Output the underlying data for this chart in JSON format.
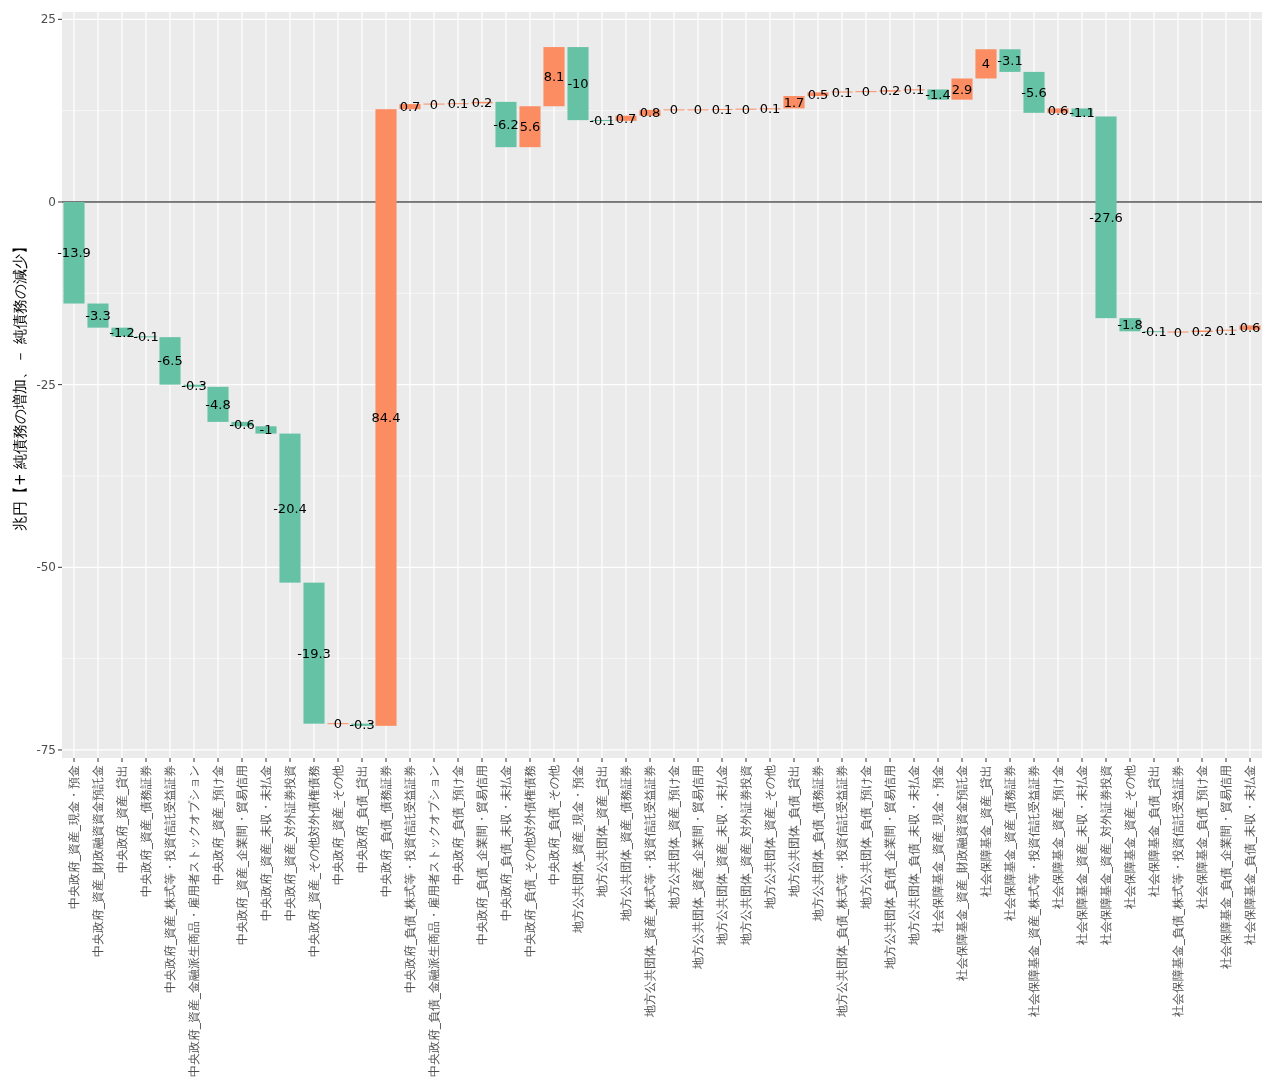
{
  "chart_data": {
    "type": "bar",
    "ylabel": "兆円【+ 純債務の増加、－ 純債務の減少】",
    "categories": [
      "中央政府_資産_現金・預金",
      "中央政府_資産_財政融資資金預託金",
      "中央政府_資産_貸出",
      "中央政府_資産_債務証券",
      "中央政府_資産_株式等・投資信託受益証券",
      "中央政府_資産_金融派生商品・雇用者ストックオプション",
      "中央政府_資産_預け金",
      "中央政府_資産_企業間・貿易信用",
      "中央政府_資産_未収・未払金",
      "中央政府_資産_対外証券投資",
      "中央政府_資産_その他対外債権債務",
      "中央政府_資産_その他",
      "中央政府_負債_貸出",
      "中央政府_負債_債務証券",
      "中央政府_負債_株式等・投資信託受益証券",
      "中央政府_負債_金融派生商品・雇用者ストックオプション",
      "中央政府_負債_預け金",
      "中央政府_負債_企業間・貿易信用",
      "中央政府_負債_未収・未払金",
      "中央政府_負債_その他対外債権債務",
      "中央政府_負債_その他",
      "地方公共団体_資産_現金・預金",
      "地方公共団体_資産_貸出",
      "地方公共団体_資産_債務証券",
      "地方公共団体_資産_株式等・投資信託受益証券",
      "地方公共団体_資産_預け金",
      "地方公共団体_資産_企業間・貿易信用",
      "地方公共団体_資産_未収・未払金",
      "地方公共団体_資産_対外証券投資",
      "地方公共団体_資産_その他",
      "地方公共団体_負債_貸出",
      "地方公共団体_負債_債務証券",
      "地方公共団体_負債_株式等・投資信託受益証券",
      "地方公共団体_負債_預け金",
      "地方公共団体_負債_企業間・貿易信用",
      "地方公共団体_負債_未収・未払金",
      "社会保障基金_資産_現金・預金",
      "社会保障基金_資産_財政融資資金預託金",
      "社会保障基金_資産_貸出",
      "社会保障基金_資産_債務証券",
      "社会保障基金_資産_株式等・投資信託受益証券",
      "社会保障基金_資産_預け金",
      "社会保障基金_資産_未収・未払金",
      "社会保障基金_資産_対外証券投資",
      "社会保障基金_資産_その他",
      "社会保障基金_負債_貸出",
      "社会保障基金_負債_株式等・投資信託受益証券",
      "社会保障基金_負債_預け金",
      "社会保障基金_負債_企業間・貿易信用",
      "社会保障基金_負債_未収・未払金"
    ],
    "values": [
      -13.9,
      -3.3,
      -1.2,
      -0.1,
      -6.5,
      -0.3,
      -4.8,
      -0.6,
      -1,
      -20.4,
      -19.3,
      0,
      -0.3,
      84.4,
      0.7,
      0,
      0.1,
      0.2,
      -6.2,
      5.6,
      8.1,
      -10,
      -0.1,
      0.7,
      0.8,
      0,
      0,
      0.1,
      0,
      0.1,
      1.7,
      0.5,
      0.1,
      0,
      0.2,
      0.1,
      -1.4,
      2.9,
      4,
      -3.1,
      -5.6,
      0.6,
      -1.1,
      -27.6,
      -1.8,
      -0.1,
      0,
      0.2,
      0.1,
      0.6
    ],
    "base": [
      0,
      -13.9,
      -17.2,
      -18.4,
      -18.5,
      -25,
      -25.3,
      -30.1,
      -30.7,
      -31.7,
      -52.1,
      -71.4,
      -71.4,
      -71.7,
      12.7,
      13.4,
      13.4,
      13.5,
      13.7,
      7.5,
      13.1,
      21.2,
      11.2,
      11.1,
      11.8,
      12.6,
      12.6,
      12.6,
      12.7,
      12.7,
      12.8,
      14.5,
      15,
      15.1,
      15.1,
      15.3,
      15.4,
      14,
      16.9,
      20.9,
      17.8,
      12.2,
      12.8,
      11.7,
      -15.9,
      -17.7,
      -17.8,
      -17.8,
      -17.6,
      -17.5
    ],
    "colors": [
      "#66c2a5",
      "#66c2a5",
      "#66c2a5",
      "#66c2a5",
      "#66c2a5",
      "#66c2a5",
      "#66c2a5",
      "#66c2a5",
      "#66c2a5",
      "#66c2a5",
      "#66c2a5",
      "#fc8d62",
      "#66c2a5",
      "#fc8d62",
      "#fc8d62",
      "#fc8d62",
      "#fc8d62",
      "#fc8d62",
      "#66c2a5",
      "#fc8d62",
      "#fc8d62",
      "#66c2a5",
      "#66c2a5",
      "#fc8d62",
      "#fc8d62",
      "#fc8d62",
      "#fc8d62",
      "#fc8d62",
      "#fc8d62",
      "#fc8d62",
      "#fc8d62",
      "#fc8d62",
      "#fc8d62",
      "#fc8d62",
      "#fc8d62",
      "#fc8d62",
      "#66c2a5",
      "#fc8d62",
      "#fc8d62",
      "#66c2a5",
      "#66c2a5",
      "#fc8d62",
      "#66c2a5",
      "#66c2a5",
      "#66c2a5",
      "#66c2a5",
      "#fc8d62",
      "#fc8d62",
      "#fc8d62",
      "#fc8d62"
    ],
    "ylim": [
      -76.1,
      26
    ],
    "yticks": [
      -75,
      {
        "value": -62.5,
        "label": null
      },
      -50,
      {
        "value": -37.5,
        "label": null
      },
      -25,
      {
        "value": -12.5,
        "label": null
      },
      0,
      {
        "value": 12.5,
        "label": null
      },
      25
    ],
    "ref_lines": [
      {
        "axis": "y",
        "value": 0,
        "color": "#000000"
      }
    ],
    "grid": true,
    "data_labels": true
  }
}
